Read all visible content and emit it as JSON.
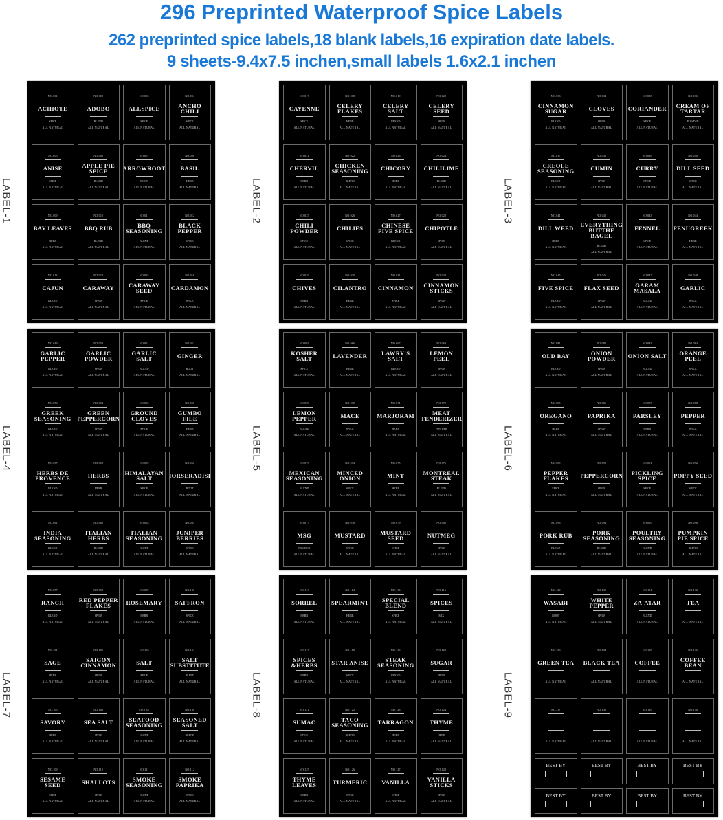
{
  "header": {
    "title": "296 Preprinted Waterproof Spice Labels",
    "subtitle_line1": "262 preprinted spice labels,18 blank labels,16 expiration date labels.",
    "subtitle_line2": "9 sheets-9.4x7.5 inchen,small labels 1.6x2.1 inchen"
  },
  "colors": {
    "heading": "#1a78d6",
    "sheet": "#000000",
    "label_text": "#eeeeee"
  },
  "footer_text": "ALL NATURAL",
  "best_by_text": "BEST BY",
  "sheets": [
    {
      "label": "LABEL-1",
      "items": [
        [
          "NO.001",
          "ACHIOTE",
          "SPICE"
        ],
        [
          "NO.002",
          "ADOBO",
          "BLEND"
        ],
        [
          "NO.003",
          "ALLSPICE",
          "SPICE"
        ],
        [
          "NO.004",
          "ANCHO CHILI",
          "SPICE"
        ],
        [
          "NO.005",
          "ANISE",
          "SPICE"
        ],
        [
          "NO.006",
          "APPLE PIE SPICE",
          "BLEND"
        ],
        [
          "NO.007",
          "ARROWROOT",
          "ROOT"
        ],
        [
          "NO.008",
          "BASIL",
          "HERB"
        ],
        [
          "NO.009",
          "BAY LEAVES",
          "HERB"
        ],
        [
          "NO.010",
          "BBQ RUB",
          "BLEND"
        ],
        [
          "NO.011",
          "BBQ SEASONING",
          "BLEND"
        ],
        [
          "NO.012",
          "BLACK PEPPER",
          "SPICE"
        ],
        [
          "NO.013",
          "CAJUN",
          "BLEND"
        ],
        [
          "NO.014",
          "CARAWAY",
          "SPICE"
        ],
        [
          "NO.015",
          "CARAWAY SEED",
          "SPICE"
        ],
        [
          "NO.016",
          "CARDAMON",
          "SPICE"
        ]
      ]
    },
    {
      "label": "LABEL-2",
      "items": [
        [
          "NO.017",
          "CAYENNE",
          "SPICE"
        ],
        [
          "NO.018",
          "CELERY FLAKES",
          "HERB"
        ],
        [
          "NO.019",
          "CELERY SALT",
          "BLEND"
        ],
        [
          "NO.020",
          "CELERY SEED",
          "SPICE"
        ],
        [
          "NO.021",
          "CHERVIL",
          "HERB"
        ],
        [
          "NO.022",
          "CHICKEN SEASONING",
          "BLEND"
        ],
        [
          "NO.023",
          "CHICORY",
          "HERB"
        ],
        [
          "NO.024",
          "CHILILIME",
          "BLEND"
        ],
        [
          "NO.025",
          "CHILI POWDER",
          "SPICE"
        ],
        [
          "NO.026",
          "CHILIES",
          "SPICE"
        ],
        [
          "NO.027",
          "CHINESE FIVE SPICE",
          "BLEND"
        ],
        [
          "NO.028",
          "CHIPOTLE",
          "SPICE"
        ],
        [
          "NO.029",
          "CHIVES",
          "HERB"
        ],
        [
          "NO.030",
          "CILANTRO",
          "HERB"
        ],
        [
          "NO.031",
          "CINNAMON",
          "SPICE"
        ],
        [
          "NO.032",
          "CINNAMON STICKS",
          "SPICE"
        ]
      ]
    },
    {
      "label": "LABEL-3",
      "items": [
        [
          "NO.033",
          "CINNAMON SUGAR",
          "BLEND"
        ],
        [
          "NO.034",
          "CLOVES",
          "SPICE"
        ],
        [
          "NO.035",
          "CORIANDER",
          "SPICE"
        ],
        [
          "NO.036",
          "CREAM OF TARTAR",
          "POWDER"
        ],
        [
          "NO.037",
          "CREOLE SEASONING",
          "BLEND"
        ],
        [
          "NO.038",
          "CUMIN",
          "SPICE"
        ],
        [
          "NO.039",
          "CURRY",
          "SPICE"
        ],
        [
          "NO.040",
          "DILL SEED",
          "SPICE"
        ],
        [
          "NO.041",
          "DILL WEED",
          "HERB"
        ],
        [
          "NO.042",
          "EVERYTHING BUTTHE BAGEL",
          "BLEND"
        ],
        [
          "NO.043",
          "FENNEL",
          "SPICE"
        ],
        [
          "NO.044",
          "FENUGREEK",
          "HERB"
        ],
        [
          "NO.045",
          "FIVE SPICE",
          "BLEND"
        ],
        [
          "NO.046",
          "FLAX SEED",
          "SPICE"
        ],
        [
          "NO.047",
          "GARAM MASALA",
          "BLEND"
        ],
        [
          "NO.048",
          "GARLIC",
          "SPICE"
        ]
      ]
    },
    {
      "label": "LABEL-4",
      "items": [
        [
          "NO.049",
          "GARLIC PEPPER",
          "BLEND"
        ],
        [
          "NO.050",
          "GARLIC POWDER",
          "SPICE"
        ],
        [
          "NO.051",
          "GARLIC SALT",
          "BLEND"
        ],
        [
          "NO.052",
          "GINGER",
          "ROOT"
        ],
        [
          "NO.053",
          "GREEK SEASONING",
          "BLEND"
        ],
        [
          "NO.054",
          "GREEN PEPPERCORN",
          "SPICE"
        ],
        [
          "NO.055",
          "GROUND CLOVES",
          "SPICE"
        ],
        [
          "NO.056",
          "GUMBO FILE",
          "HERB"
        ],
        [
          "NO.057",
          "HERBS DE PROVENCE",
          "BLEND"
        ],
        [
          "NO.058",
          "HERBS",
          "HERB"
        ],
        [
          "NO.059",
          "HIMALAYAN SALT",
          "SPICE"
        ],
        [
          "NO.060",
          "HORSERADISH",
          "ROOT"
        ],
        [
          "NO.061",
          "INDIA SEASONING",
          "BLEND"
        ],
        [
          "NO.062",
          "ITALIAN HERBS",
          "BLEND"
        ],
        [
          "NO.063",
          "ITALIAN SEASONING",
          "BLEND"
        ],
        [
          "NO.064",
          "JUNIPER BERRIES",
          "SPICE"
        ]
      ]
    },
    {
      "label": "LABEL-5",
      "items": [
        [
          "NO.065",
          "KOSHER SALT",
          "SPICE"
        ],
        [
          "NO.066",
          "LAVENDER",
          "HERB"
        ],
        [
          "NO.067",
          "LAWRY'S SALT",
          "BLEND"
        ],
        [
          "NO.068",
          "LEMON PEEL",
          "SPICE"
        ],
        [
          "NO.069",
          "LEMON PEPPER",
          "BLEND"
        ],
        [
          "NO.070",
          "MACE",
          "SPICE"
        ],
        [
          "NO.071",
          "MARJORAM",
          "HERB"
        ],
        [
          "NO.072",
          "MEAT TENDERIZER",
          "POWDER"
        ],
        [
          "NO.073",
          "MEXICAN SEASONING",
          "BLEND"
        ],
        [
          "NO.074",
          "MINCED ONION",
          "SPICE"
        ],
        [
          "NO.075",
          "MINT",
          "HERB"
        ],
        [
          "NO.076",
          "MONTREAL STEAK",
          "BLEND"
        ],
        [
          "NO.077",
          "MSG",
          "POWDER"
        ],
        [
          "NO.078",
          "MUSTARD",
          "SPICE"
        ],
        [
          "NO.079",
          "MUSTARD SEED",
          "SPICE"
        ],
        [
          "NO.080",
          "NUTMEG",
          "SPICE"
        ]
      ]
    },
    {
      "label": "LABEL-6",
      "items": [
        [
          "NO.081",
          "OLD BAY",
          "BLEND"
        ],
        [
          "NO.082",
          "ONION POWDER",
          "SPICE"
        ],
        [
          "NO.083",
          "ONION SALT",
          "BLEND"
        ],
        [
          "NO.084",
          "ORANGE PEEL",
          "SPICE"
        ],
        [
          "NO.085",
          "OREGANO",
          "HERB"
        ],
        [
          "NO.086",
          "PAPRIKA",
          "SPICE"
        ],
        [
          "NO.087",
          "PARSLEY",
          "HERB"
        ],
        [
          "NO.088",
          "PEPPER",
          "SPICE"
        ],
        [
          "NO.089",
          "PEPPER FLAKES",
          "SPICE"
        ],
        [
          "NO.090",
          "PEPPERCORN",
          "SPICE"
        ],
        [
          "NO.091",
          "PICKLING SPICE",
          "SPICE"
        ],
        [
          "NO.092",
          "POPPY SEED",
          "SPICE"
        ],
        [
          "NO.093",
          "PORK RUB",
          "BLEND"
        ],
        [
          "NO.094",
          "PORK SEASONING",
          "BLEND"
        ],
        [
          "NO.095",
          "POULTRY SEASONING",
          "BLEND"
        ],
        [
          "NO.096",
          "PUMPKIN PIE SPICE",
          "BLEND"
        ]
      ]
    },
    {
      "label": "LABEL-7",
      "items": [
        [
          "NO.097",
          "RANCH",
          "BLEND"
        ],
        [
          "NO.098",
          "RED PEPPER FLAKES",
          "SPICE"
        ],
        [
          "NO.099",
          "ROSEMARY",
          "HERB"
        ],
        [
          "NO.100",
          "SAFFRON",
          "SPICE"
        ],
        [
          "NO.101",
          "SAGE",
          "HERB"
        ],
        [
          "NO.102",
          "SAIGON CINNAMON",
          "SPICE"
        ],
        [
          "NO.103",
          "SALT",
          "SPICE"
        ],
        [
          "NO.104",
          "SALT SUBSTITUTE",
          "BLEND"
        ],
        [
          "NO.105",
          "SAVORY",
          "HERB"
        ],
        [
          "NO.106",
          "SEA SALT",
          "SPICE"
        ],
        [
          "NO.0107",
          "SEAFOOD SEASONING",
          "BLEND"
        ],
        [
          "NO.108",
          "SEASONED SALT",
          "BLEND"
        ],
        [
          "NO.109",
          "SESAME SEED",
          "SPICE"
        ],
        [
          "NO.110",
          "SHALLOTS",
          "SPICE"
        ],
        [
          "NO.111",
          "SMOKE SEASONING",
          "BLEND"
        ],
        [
          "NO.112",
          "SMOKE PAPRIKA",
          "SPICE"
        ]
      ]
    },
    {
      "label": "LABEL-8",
      "items": [
        [
          "NO.113",
          "SORREL",
          "HERB"
        ],
        [
          "NO.114",
          "SPEARMINT",
          "HERB"
        ],
        [
          "NO.115",
          "SPECIAL BLEND",
          "SPICE"
        ],
        [
          "NO.116",
          "SPICES",
          "MIX"
        ],
        [
          "NO.117",
          "SPICES &HERBS",
          "HERB"
        ],
        [
          "NO.118",
          "STAR ANISE",
          "SPICE"
        ],
        [
          "NO.119",
          "STEAK SEASONING",
          "BLEND"
        ],
        [
          "NO.120",
          "SUGAR",
          "SPICE"
        ],
        [
          "NO.121",
          "SUMAC",
          "SPICE"
        ],
        [
          "NO.122",
          "TACO SEASONING",
          "BLEND"
        ],
        [
          "NO.123",
          "TARRAGON",
          "HERB"
        ],
        [
          "NO.124",
          "THYME",
          "HERB"
        ],
        [
          "NO.125",
          "THYME LEAVES",
          "HERB"
        ],
        [
          "NO.126",
          "TURMERIC",
          "SPICE"
        ],
        [
          "NO.127",
          "VANILLA",
          "SPICE"
        ],
        [
          "NO.128",
          "VANILLA STICKS",
          "SPICE"
        ]
      ]
    },
    {
      "label": "LABEL-9",
      "items": [
        [
          "NO.129",
          "WASABI",
          "ROOT"
        ],
        [
          "NO.130",
          "WHITE PEPPER",
          "SPICE"
        ],
        [
          "NO.131",
          "ZA'ATAR",
          "BLEND"
        ],
        [
          "NO.132",
          "TEA",
          ""
        ],
        [
          "NO.133",
          "GREEN TEA",
          ""
        ],
        [
          "NO.134",
          "BLACK TEA",
          ""
        ],
        [
          "NO.135",
          "COFFEE",
          ""
        ],
        [
          "NO.136",
          "COFFEE BEAN",
          ""
        ],
        [
          "NO.137",
          "",
          ""
        ],
        [
          "NO.138",
          "",
          ""
        ],
        [
          "NO.139",
          "",
          ""
        ],
        [
          "NO.140",
          "",
          ""
        ]
      ],
      "best_by_count": 8
    }
  ]
}
